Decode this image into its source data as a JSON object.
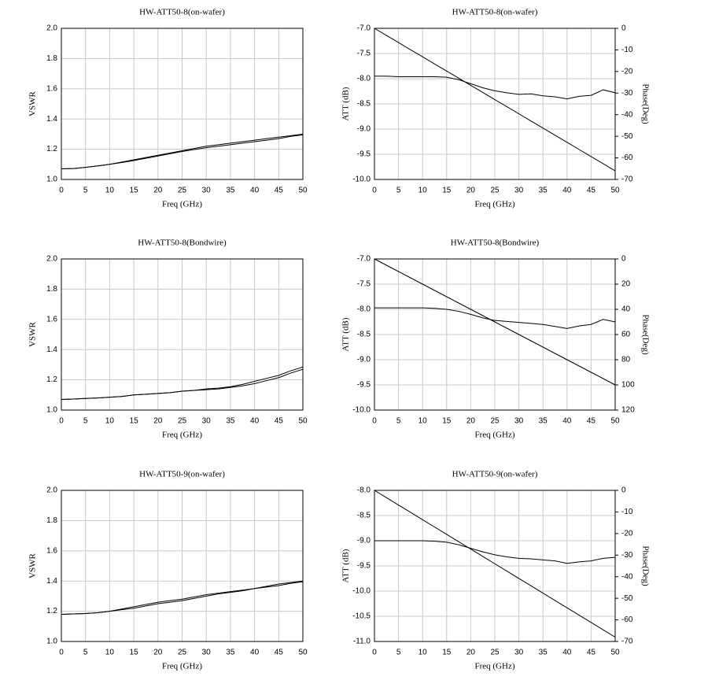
{
  "chart_data": [
    {
      "type": "line",
      "title": "HW-ATT50-8(on-wafer)",
      "xlabel": "Freq (GHz)",
      "ylabel": "VSWR",
      "grid": true,
      "x": [
        0,
        2.5,
        5,
        7.5,
        10,
        12.5,
        15,
        17.5,
        20,
        22.5,
        25,
        27.5,
        30,
        32.5,
        35,
        37.5,
        40,
        42.5,
        45,
        47.5,
        50
      ],
      "xlim": [
        0,
        50
      ],
      "xticks": [
        0,
        5,
        10,
        15,
        20,
        25,
        30,
        35,
        40,
        45,
        50
      ],
      "ylim": [
        1,
        2
      ],
      "yticks": [
        {
          "value": 1,
          "label": "1.0"
        },
        1.2,
        1.4,
        1.6,
        1.8,
        {
          "value": 2,
          "label": "2.0"
        }
      ],
      "series": [
        {
          "color": "#000000",
          "values": [
            1.07,
            1.072,
            1.08,
            1.09,
            1.1,
            1.115,
            1.13,
            1.145,
            1.16,
            1.175,
            1.19,
            1.205,
            1.22,
            1.23,
            1.24,
            1.25,
            1.26,
            1.27,
            1.28,
            1.29,
            1.3
          ]
        },
        {
          "color": "#000000",
          "values": [
            1.07,
            1.072,
            1.08,
            1.089,
            1.1,
            1.112,
            1.125,
            1.14,
            1.155,
            1.17,
            1.185,
            1.198,
            1.21,
            1.22,
            1.23,
            1.24,
            1.25,
            1.26,
            1.27,
            1.285,
            1.295
          ]
        }
      ]
    },
    {
      "type": "line",
      "title": "HW-ATT50-8(on-wafer)",
      "xlabel": "Freq (GHz)",
      "ylabel": "ATT (dB)",
      "y2label": "Phase(Deg)",
      "grid": true,
      "x": [
        0,
        2.5,
        5,
        7.5,
        10,
        12.5,
        15,
        17.5,
        20,
        22.5,
        25,
        27.5,
        30,
        32.5,
        35,
        37.5,
        40,
        42.5,
        45,
        47.5,
        50
      ],
      "xlim": [
        0,
        50
      ],
      "xticks": [
        0,
        5,
        10,
        15,
        20,
        25,
        30,
        35,
        40,
        45,
        50
      ],
      "ylim": [
        -10,
        -7
      ],
      "yticks": [
        {
          "value": -7,
          "label": "-7.0"
        },
        -7.5,
        {
          "value": -8,
          "label": "-8.0"
        },
        -8.5,
        {
          "value": -9,
          "label": "-9.0"
        },
        -9.5,
        {
          "value": -10,
          "label": "-10.0"
        }
      ],
      "y2lim": [
        -70,
        0
      ],
      "y2ticks": [
        0,
        -10,
        -20,
        -30,
        -40,
        -50,
        -60,
        -70
      ],
      "series": [
        {
          "color": "#000000",
          "values": [
            -7.95,
            -7.95,
            -7.96,
            -7.96,
            -7.96,
            -7.96,
            -7.97,
            -8.02,
            -8.1,
            -8.18,
            -8.24,
            -8.28,
            -8.31,
            -8.3,
            -8.34,
            -8.36,
            -8.4,
            -8.35,
            -8.33,
            -8.22,
            -8.28
          ]
        },
        {
          "color": "#000000",
          "axis": "y2",
          "values": [
            0,
            -3.3,
            -6.6,
            -9.9,
            -13.2,
            -16.5,
            -19.8,
            -23.1,
            -26.4,
            -29.7,
            -33,
            -36.3,
            -39.6,
            -42.9,
            -46.2,
            -49.5,
            -52.8,
            -56.1,
            -59.4,
            -62.7,
            -66
          ]
        }
      ]
    },
    {
      "type": "line",
      "title": "HW-ATT50-8(Bondwire)",
      "xlabel": "Freq (GHz)",
      "ylabel": "VSWR",
      "grid": true,
      "x": [
        0,
        2.5,
        5,
        7.5,
        10,
        12.5,
        15,
        17.5,
        20,
        22.5,
        25,
        27.5,
        30,
        32.5,
        35,
        37.5,
        40,
        42.5,
        45,
        47.5,
        50
      ],
      "xlim": [
        0,
        50
      ],
      "xticks": [
        0,
        5,
        10,
        15,
        20,
        25,
        30,
        35,
        40,
        45,
        50
      ],
      "ylim": [
        1,
        2
      ],
      "yticks": [
        {
          "value": 1,
          "label": "1.0"
        },
        1.2,
        1.4,
        1.6,
        1.8,
        {
          "value": 2,
          "label": "2.0"
        }
      ],
      "series": [
        {
          "color": "#000000",
          "values": [
            1.07,
            1.073,
            1.077,
            1.08,
            1.085,
            1.09,
            1.1,
            1.105,
            1.11,
            1.115,
            1.125,
            1.13,
            1.14,
            1.145,
            1.155,
            1.17,
            1.19,
            1.21,
            1.23,
            1.26,
            1.285
          ]
        },
        {
          "color": "#000000",
          "values": [
            1.07,
            1.073,
            1.077,
            1.08,
            1.085,
            1.09,
            1.1,
            1.105,
            1.11,
            1.115,
            1.125,
            1.13,
            1.135,
            1.14,
            1.15,
            1.16,
            1.175,
            1.195,
            1.215,
            1.245,
            1.27
          ]
        }
      ]
    },
    {
      "type": "line",
      "title": "HW-ATT50-8(Bondwire)",
      "xlabel": "Freq (GHz)",
      "ylabel": "ATT (dB)",
      "y2label": "Phase(Deg)",
      "grid": true,
      "x": [
        0,
        2.5,
        5,
        7.5,
        10,
        12.5,
        15,
        17.5,
        20,
        22.5,
        25,
        27.5,
        30,
        32.5,
        35,
        37.5,
        40,
        42.5,
        45,
        47.5,
        50
      ],
      "xlim": [
        0,
        50
      ],
      "xticks": [
        0,
        5,
        10,
        15,
        20,
        25,
        30,
        35,
        40,
        45,
        50
      ],
      "ylim": [
        -10,
        -7
      ],
      "yticks": [
        {
          "value": -7,
          "label": "-7.0"
        },
        -7.5,
        {
          "value": -8,
          "label": "-8.0"
        },
        -8.5,
        {
          "value": -9,
          "label": "-9.0"
        },
        -9.5,
        {
          "value": -10,
          "label": "-10.0"
        }
      ],
      "y2lim": [
        -120,
        0
      ],
      "y2ticks": [
        0,
        {
          "value": -20,
          "label": "20"
        },
        {
          "value": -40,
          "label": "40"
        },
        {
          "value": -60,
          "label": "60"
        },
        {
          "value": -80,
          "label": "80"
        },
        {
          "value": -100,
          "label": "100"
        },
        {
          "value": -120,
          "label": "120"
        }
      ],
      "series": [
        {
          "color": "#000000",
          "values": [
            -7.97,
            -7.97,
            -7.97,
            -7.97,
            -7.97,
            -7.98,
            -8.0,
            -8.04,
            -8.1,
            -8.17,
            -8.22,
            -8.24,
            -8.26,
            -8.28,
            -8.3,
            -8.34,
            -8.38,
            -8.33,
            -8.3,
            -8.2,
            -8.25
          ]
        },
        {
          "color": "#000000",
          "axis": "y2",
          "values": [
            0,
            -5,
            -10,
            -15,
            -20,
            -25,
            -30,
            -35,
            -40,
            -45,
            -50,
            -55,
            -60,
            -65,
            -70,
            -75,
            -80,
            -85,
            -90,
            -95,
            -100
          ]
        }
      ]
    },
    {
      "type": "line",
      "title": "HW-ATT50-9(on-wafer)",
      "xlabel": "Freq (GHz)",
      "ylabel": "VSWR",
      "grid": true,
      "x": [
        0,
        2.5,
        5,
        7.5,
        10,
        12.5,
        15,
        17.5,
        20,
        22.5,
        25,
        27.5,
        30,
        32.5,
        35,
        37.5,
        40,
        42.5,
        45,
        47.5,
        50
      ],
      "xlim": [
        0,
        50
      ],
      "xticks": [
        0,
        5,
        10,
        15,
        20,
        25,
        30,
        35,
        40,
        45,
        50
      ],
      "ylim": [
        1,
        2
      ],
      "yticks": [
        {
          "value": 1,
          "label": "1.0"
        },
        1.2,
        1.4,
        1.6,
        1.8,
        {
          "value": 2,
          "label": "2.0"
        }
      ],
      "series": [
        {
          "color": "#000000",
          "values": [
            1.18,
            1.182,
            1.185,
            1.19,
            1.2,
            1.215,
            1.23,
            1.245,
            1.26,
            1.27,
            1.28,
            1.295,
            1.31,
            1.32,
            1.33,
            1.34,
            1.35,
            1.365,
            1.38,
            1.39,
            1.4
          ]
        },
        {
          "color": "#000000",
          "values": [
            1.18,
            1.182,
            1.185,
            1.19,
            1.2,
            1.21,
            1.22,
            1.235,
            1.25,
            1.26,
            1.27,
            1.285,
            1.3,
            1.315,
            1.325,
            1.335,
            1.35,
            1.36,
            1.37,
            1.385,
            1.395
          ]
        }
      ]
    },
    {
      "type": "line",
      "title": "HW-ATT50-9(on-wafer)",
      "xlabel": "Freq (GHz)",
      "ylabel": "ATT (dB)",
      "y2label": "Phase(Deg)",
      "grid": true,
      "x": [
        0,
        2.5,
        5,
        7.5,
        10,
        12.5,
        15,
        17.5,
        20,
        22.5,
        25,
        27.5,
        30,
        32.5,
        35,
        37.5,
        40,
        42.5,
        45,
        47.5,
        50
      ],
      "xlim": [
        0,
        50
      ],
      "xticks": [
        0,
        5,
        10,
        15,
        20,
        25,
        30,
        35,
        40,
        45,
        50
      ],
      "ylim": [
        -11,
        -8
      ],
      "yticks": [
        {
          "value": -8,
          "label": "-8.0"
        },
        -8.5,
        {
          "value": -9,
          "label": "-9.0"
        },
        -9.5,
        {
          "value": -10,
          "label": "-10.0"
        },
        -10.5,
        {
          "value": -11,
          "label": "-11.0"
        }
      ],
      "y2lim": [
        -70,
        0
      ],
      "y2ticks": [
        0,
        -10,
        -20,
        -30,
        -40,
        -50,
        -60,
        -70
      ],
      "series": [
        {
          "color": "#000000",
          "values": [
            -9.0,
            -9.0,
            -9.0,
            -9.0,
            -9.0,
            -9.01,
            -9.03,
            -9.08,
            -9.15,
            -9.22,
            -9.28,
            -9.32,
            -9.35,
            -9.36,
            -9.38,
            -9.4,
            -9.45,
            -9.42,
            -9.4,
            -9.35,
            -9.33
          ]
        },
        {
          "color": "#000000",
          "axis": "y2",
          "values": [
            0,
            -3.4,
            -6.8,
            -10.2,
            -13.6,
            -17,
            -20.4,
            -23.8,
            -27.2,
            -30.6,
            -34,
            -37.4,
            -40.8,
            -44.2,
            -47.6,
            -51,
            -54.4,
            -57.8,
            -61.2,
            -64.6,
            -68
          ]
        }
      ]
    }
  ]
}
